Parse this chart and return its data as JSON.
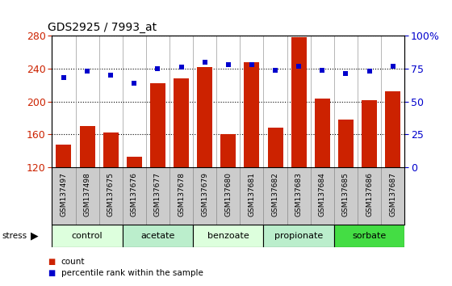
{
  "title": "GDS2925 / 7993_at",
  "samples": [
    "GSM137497",
    "GSM137498",
    "GSM137675",
    "GSM137676",
    "GSM137677",
    "GSM137678",
    "GSM137679",
    "GSM137680",
    "GSM137681",
    "GSM137682",
    "GSM137683",
    "GSM137684",
    "GSM137685",
    "GSM137686",
    "GSM137687"
  ],
  "counts": [
    148,
    170,
    162,
    133,
    222,
    228,
    242,
    160,
    248,
    168,
    278,
    204,
    178,
    202,
    212
  ],
  "percentiles": [
    68,
    73,
    70,
    64,
    75,
    76,
    80,
    78,
    78,
    74,
    77,
    74,
    71,
    73,
    77
  ],
  "groups": [
    {
      "label": "control",
      "start": 0,
      "end": 3,
      "color": "#ddffdd"
    },
    {
      "label": "acetate",
      "start": 3,
      "end": 6,
      "color": "#bbeecc"
    },
    {
      "label": "benzoate",
      "start": 6,
      "end": 9,
      "color": "#ddffdd"
    },
    {
      "label": "propionate",
      "start": 9,
      "end": 12,
      "color": "#bbeecc"
    },
    {
      "label": "sorbate",
      "start": 12,
      "end": 15,
      "color": "#44dd44"
    }
  ],
  "ylim_left": [
    120,
    280
  ],
  "ylim_right": [
    0,
    100
  ],
  "yticks_left": [
    120,
    160,
    200,
    240,
    280
  ],
  "yticks_right": [
    0,
    25,
    50,
    75,
    100
  ],
  "bar_color": "#cc2200",
  "dot_color": "#0000cc",
  "bg_color": "#ffffff",
  "label_area_color": "#cccccc",
  "tick_label_color_left": "#cc2200",
  "tick_label_color_right": "#0000cc",
  "legend_count_color": "#cc2200",
  "legend_pct_color": "#0000cc",
  "fig_width": 5.6,
  "fig_height": 3.54,
  "dpi": 100
}
